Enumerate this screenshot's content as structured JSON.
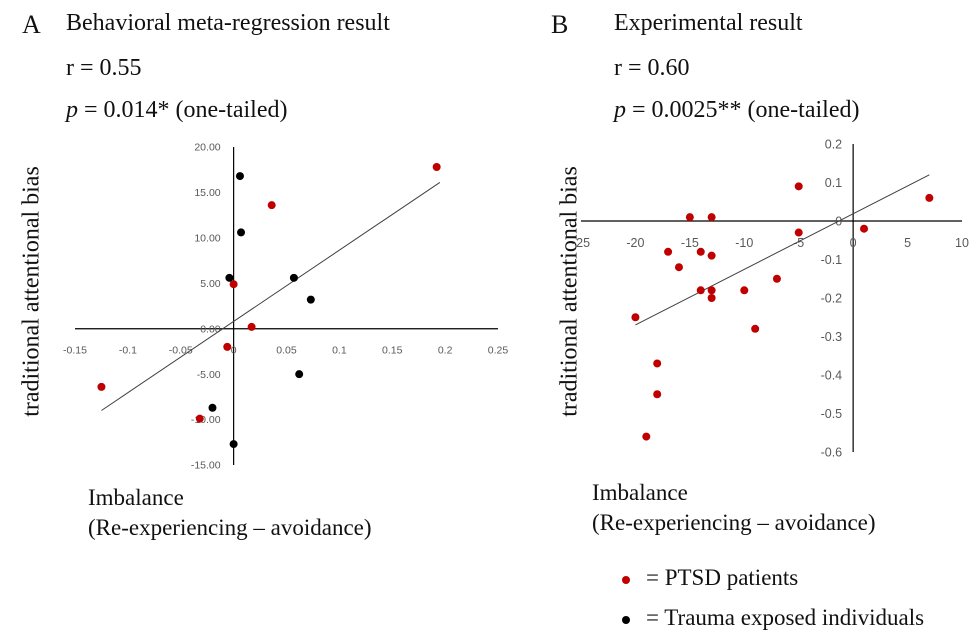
{
  "panels": {
    "A": {
      "letter": "A",
      "title": "Behavioral meta-regression result",
      "r_text": "r = 0.55",
      "p_italic": "p",
      "p_rest": " = 0.014* (one-tailed)",
      "ylabel": "traditional attentional bias",
      "xlabel_line1": "Imbalance",
      "xlabel_line2": "(Re-experiencing – avoidance)"
    },
    "B": {
      "letter": "B",
      "title": "Experimental result",
      "r_text": "r = 0.60",
      "p_italic": "p",
      "p_rest": " = 0.0025** (one-tailed)",
      "ylabel": "traditional attentional bias",
      "xlabel_line1": "Imbalance",
      "xlabel_line2": "(Re-experiencing – avoidance)"
    }
  },
  "legend": {
    "ptsd_label": "= PTSD patients",
    "trauma_label": "= Trauma exposed individuals",
    "ptsd_color": "#c00000",
    "trauma_color": "#000000"
  },
  "chart_data": [
    {
      "type": "scatter",
      "panel": "A",
      "xlim": [
        -0.15,
        0.25
      ],
      "ylim": [
        -15,
        20
      ],
      "x_ticks": [
        -0.15,
        -0.1,
        -0.05,
        0,
        0.05,
        0.1,
        0.15,
        0.2,
        0.25
      ],
      "x_tick_labels": [
        "-0.15",
        "-0.1",
        "-0.05",
        "0",
        "0.05",
        "0.1",
        "0.15",
        "0.2",
        "0.25"
      ],
      "y_ticks": [
        20,
        15,
        10,
        5,
        0,
        -5,
        -10,
        -15
      ],
      "y_tick_labels": [
        "20.00",
        "15.00",
        "10.00",
        "5.00",
        "0.00",
        "-5.00",
        "-10.00",
        "-15.00"
      ],
      "series": [
        {
          "name": "PTSD patients",
          "color": "#c00000",
          "points": [
            [
              -0.125,
              -6.4
            ],
            [
              -0.032,
              -9.9
            ],
            [
              -0.006,
              -2.0
            ],
            [
              0.0,
              4.9
            ],
            [
              0.017,
              0.2
            ],
            [
              0.036,
              13.6
            ],
            [
              0.192,
              17.8
            ]
          ]
        },
        {
          "name": "Trauma exposed individuals",
          "color": "#000000",
          "points": [
            [
              -0.02,
              -8.7
            ],
            [
              -0.004,
              5.6
            ],
            [
              0.0,
              -12.7
            ],
            [
              0.006,
              16.8
            ],
            [
              0.007,
              10.6
            ],
            [
              0.057,
              5.6
            ],
            [
              0.073,
              3.2
            ],
            [
              0.062,
              -5.0
            ]
          ]
        }
      ],
      "trendline": [
        [
          -0.125,
          -9.0
        ],
        [
          0.195,
          16.1
        ]
      ],
      "grid": false
    },
    {
      "type": "scatter",
      "panel": "B",
      "xlim": [
        -25,
        10
      ],
      "ylim": [
        -0.6,
        0.2
      ],
      "x_ticks": [
        -25,
        -20,
        -15,
        -10,
        -5,
        0,
        5,
        10
      ],
      "x_tick_labels": [
        "-25",
        "-20",
        "-15",
        "-10",
        "-5",
        "0",
        "5",
        "10"
      ],
      "y_ticks": [
        0.2,
        0.1,
        0,
        -0.1,
        -0.2,
        -0.3,
        -0.4,
        -0.5,
        -0.6
      ],
      "y_tick_labels": [
        "0.2",
        "0.1",
        "0",
        "-0.1",
        "-0.2",
        "-0.3",
        "-0.4",
        "-0.5",
        "-0.6"
      ],
      "series": [
        {
          "name": "PTSD patients",
          "color": "#c00000",
          "points": [
            [
              -20,
              -0.25
            ],
            [
              -19,
              -0.56
            ],
            [
              -18,
              -0.37
            ],
            [
              -18,
              -0.45
            ],
            [
              -17,
              -0.08
            ],
            [
              -16,
              -0.12
            ],
            [
              -15,
              0.01
            ],
            [
              -14,
              -0.08
            ],
            [
              -14,
              -0.18
            ],
            [
              -13,
              -0.09
            ],
            [
              -13,
              -0.18
            ],
            [
              -13,
              -0.2
            ],
            [
              -13,
              0.01
            ],
            [
              -10,
              -0.18
            ],
            [
              -9,
              -0.28
            ],
            [
              -7,
              -0.15
            ],
            [
              -5,
              -0.03
            ],
            [
              -5,
              0.09
            ],
            [
              1,
              -0.02
            ],
            [
              7,
              0.06
            ]
          ]
        }
      ],
      "trendline": [
        [
          -20,
          -0.27
        ],
        [
          7,
          0.12
        ]
      ],
      "grid": false
    }
  ]
}
